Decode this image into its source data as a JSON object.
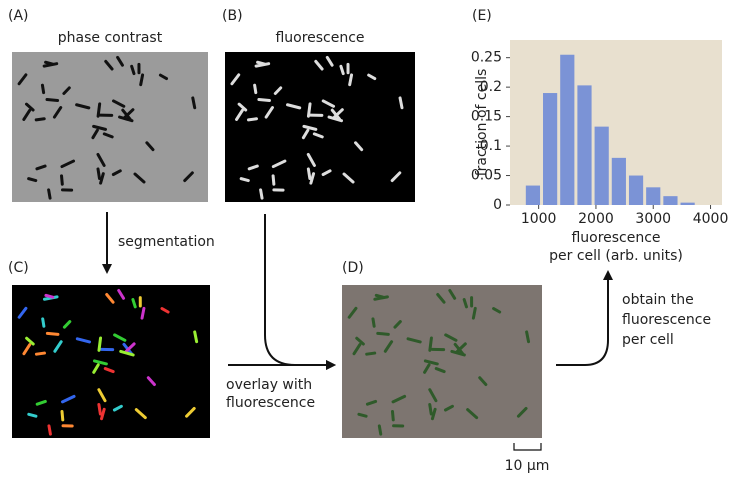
{
  "panels": {
    "a": {
      "label": "(A)",
      "title": "phase contrast"
    },
    "b": {
      "label": "(B)",
      "title": "fluorescence"
    },
    "c": {
      "label": "(C)"
    },
    "d": {
      "label": "(D)"
    },
    "e": {
      "label": "(E)"
    }
  },
  "steps": {
    "segmentation": "segmentation",
    "overlay": [
      "overlay with",
      "fluorescence"
    ],
    "obtain": [
      "obtain the",
      "fluorescence",
      "per cell"
    ]
  },
  "scale_bar": "10 μm",
  "chart_data": {
    "type": "histogram",
    "ylabel": "fraction of cells",
    "xlabel": [
      "fluorescence",
      "per cell (arb. units)"
    ],
    "bins": [
      750,
      1050,
      1350,
      1650,
      1950,
      2250,
      2550,
      2850,
      3150,
      3450,
      3750
    ],
    "values": [
      0.033,
      0.19,
      0.255,
      0.203,
      0.133,
      0.08,
      0.05,
      0.03,
      0.015,
      0.004
    ],
    "color": "#7b93d6",
    "background": "#e8e0cf",
    "xlim": [
      500,
      4200
    ],
    "xticks": [
      1000,
      2000,
      3000,
      4000
    ],
    "ylim": [
      0,
      0.28
    ],
    "yticks": [
      0,
      0.05,
      0.1,
      0.15,
      0.2,
      0.25
    ]
  }
}
